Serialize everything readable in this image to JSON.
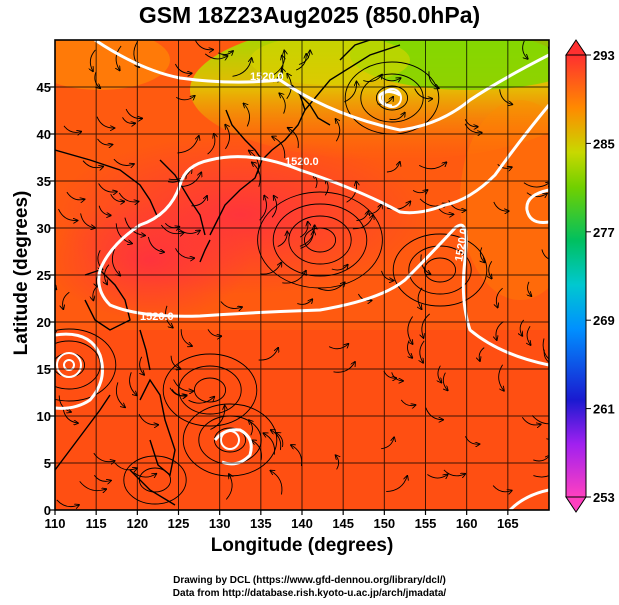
{
  "title": "GSM 18Z23Aug2025 (850.0hPa)",
  "x_axis": {
    "label": "Longitude (degrees)",
    "range": [
      110,
      170
    ],
    "ticks": [
      110,
      115,
      120,
      125,
      130,
      135,
      140,
      145,
      150,
      155,
      160,
      165
    ]
  },
  "y_axis": {
    "label": "Latitude  (degrees)",
    "range": [
      0,
      50
    ],
    "ticks": [
      0,
      5,
      10,
      15,
      20,
      25,
      30,
      35,
      40,
      45
    ]
  },
  "colorbar": {
    "min": 253,
    "max": 293,
    "tick_labels": [
      "293",
      "285",
      "277",
      "269",
      "261",
      "253"
    ]
  },
  "contour_labels": [
    "1520.0",
    "1520.0",
    "1520.0",
    "1520.0"
  ],
  "credits": {
    "line1": "Drawing by DCL (https://www.gfd-dennou.org/library/dcl/)",
    "line2": "Data from http://database.rish.kyoto-u.ac.jp/arch/jmadata/"
  },
  "colors": {
    "warm": "#ff5a10",
    "hot": "#ff3a3a",
    "cool": "#90e000",
    "contour": "#ffffff",
    "streamline": "#000000"
  }
}
